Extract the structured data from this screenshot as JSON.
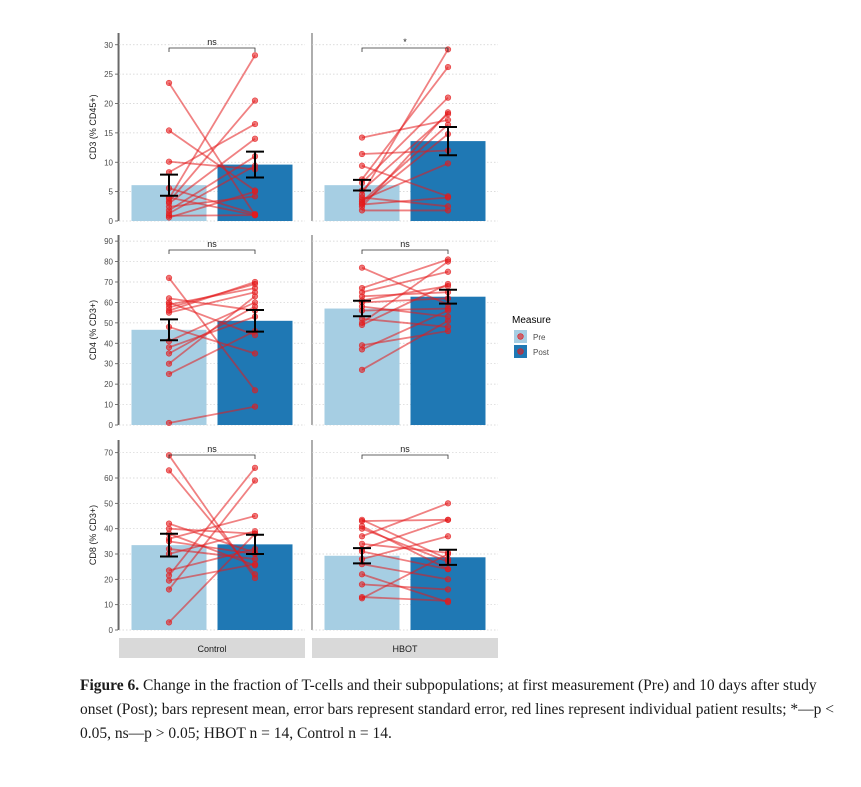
{
  "chart_data": {
    "type": "bar",
    "facet_columns": [
      "Control",
      "HBOT"
    ],
    "categories": [
      "Pre",
      "Post"
    ],
    "legend": {
      "title": "Measure",
      "entries": [
        "Pre",
        "Post"
      ],
      "position": "right"
    },
    "colors": {
      "pre": "#a6cee3",
      "post": "#1f78b4",
      "lines": "#e41a1c",
      "strip": "#d9d9d9"
    },
    "grid": true,
    "panels": [
      {
        "ylabel": "CD3 (% CD45+)",
        "ylim": [
          0,
          32
        ],
        "ticks": [
          0,
          5,
          10,
          15,
          20,
          25,
          30
        ],
        "facets": {
          "Control": {
            "mean": [
              6.1,
              9.6
            ],
            "se": [
              1.8,
              2.2
            ],
            "sig": "ns",
            "pairs": [
              [
                23.5,
                1.0
              ],
              [
                15.4,
                5.2
              ],
              [
                10.1,
                8.8
              ],
              [
                8.3,
                16.5
              ],
              [
                5.6,
                1.2
              ],
              [
                4.0,
                1.0
              ],
              [
                3.8,
                28.2
              ],
              [
                3.3,
                20.5
              ],
              [
                3.0,
                14.0
              ],
              [
                2.4,
                4.2
              ],
              [
                1.8,
                11.0
              ],
              [
                1.3,
                9.4
              ],
              [
                0.9,
                1.0
              ],
              [
                0.6,
                5.0
              ]
            ]
          },
          "HBOT": {
            "mean": [
              6.1,
              13.6
            ],
            "se": [
              0.9,
              2.4
            ],
            "sig": "*",
            "pairs": [
              [
                14.2,
                17.2
              ],
              [
                11.4,
                12.0
              ],
              [
                9.4,
                4.2
              ],
              [
                7.1,
                26.2
              ],
              [
                6.5,
                21.0
              ],
              [
                5.2,
                18.2
              ],
              [
                4.5,
                29.2
              ],
              [
                4.0,
                2.5
              ],
              [
                3.6,
                9.8
              ],
              [
                3.3,
                16.4
              ],
              [
                3.0,
                14.8
              ],
              [
                2.8,
                4.0
              ],
              [
                2.4,
                18.5
              ],
              [
                1.8,
                1.8
              ]
            ]
          }
        }
      },
      {
        "ylabel": "CD4 (% CD3+)",
        "ylim": [
          0,
          93
        ],
        "ticks": [
          0,
          10,
          20,
          30,
          40,
          50,
          60,
          70,
          80,
          90
        ],
        "facets": {
          "Control": {
            "mean": [
              46.6,
              51.0
            ],
            "se": [
              5.1,
              5.3
            ],
            "sig": "ns",
            "pairs": [
              [
                72.0,
                17.0
              ],
              [
                62.0,
                56.0
              ],
              [
                60.0,
                44.0
              ],
              [
                59.0,
                67.0
              ],
              [
                57.5,
                69.0
              ],
              [
                56.0,
                70.0
              ],
              [
                55.0,
                65.0
              ],
              [
                48.0,
                35.0
              ],
              [
                41.0,
                60.0
              ],
              [
                38.0,
                53.0
              ],
              [
                35.0,
                58.0
              ],
              [
                30.0,
                63.0
              ],
              [
                25.0,
                46.0
              ],
              [
                1.0,
                9.0
              ]
            ]
          },
          "HBOT": {
            "mean": [
              57.0,
              62.8
            ],
            "se": [
              3.8,
              3.4
            ],
            "sig": "ns",
            "pairs": [
              [
                77.0,
                59.0
              ],
              [
                67.0,
                81.0
              ],
              [
                65.0,
                75.0
              ],
              [
                63.0,
                65.0
              ],
              [
                61.0,
                68.0
              ],
              [
                60.0,
                62.0
              ],
              [
                58.0,
                53.0
              ],
              [
                56.0,
                57.0
              ],
              [
                52.0,
                48.0
              ],
              [
                50.0,
                80.0
              ],
              [
                49.0,
                69.0
              ],
              [
                39.0,
                46.0
              ],
              [
                37.0,
                56.0
              ],
              [
                27.0,
                51.0
              ]
            ]
          }
        }
      },
      {
        "ylabel": "CD8 (% CD3+)",
        "ylim": [
          0,
          75
        ],
        "ticks": [
          0,
          10,
          20,
          30,
          40,
          50,
          60,
          70
        ],
        "facets": {
          "Control": {
            "mean": [
              33.5,
              33.8
            ],
            "se": [
              4.5,
              3.8
            ],
            "sig": "ns",
            "pairs": [
              [
                69.0,
                20.5
              ],
              [
                63.0,
                22.0
              ],
              [
                42.0,
                30.5
              ],
              [
                40.0,
                38.0
              ],
              [
                38.0,
                25.5
              ],
              [
                36.0,
                45.0
              ],
              [
                35.0,
                30.0
              ],
              [
                32.0,
                28.0
              ],
              [
                30.0,
                39.0
              ],
              [
                23.5,
                32.0
              ],
              [
                21.5,
                64.0
              ],
              [
                19.5,
                26.0
              ],
              [
                16.0,
                59.0
              ],
              [
                3.0,
                38.0
              ]
            ]
          },
          "HBOT": {
            "mean": [
              29.3,
              28.7
            ],
            "se": [
              3.0,
              3.0
            ],
            "sig": "ns",
            "pairs": [
              [
                43.5,
                28.0
              ],
              [
                43.0,
                43.5
              ],
              [
                41.0,
                24.0
              ],
              [
                40.0,
                27.0
              ],
              [
                37.0,
                50.0
              ],
              [
                34.0,
                30.5
              ],
              [
                32.0,
                43.5
              ],
              [
                31.0,
                24.0
              ],
              [
                28.0,
                37.0
              ],
              [
                26.0,
                20.0
              ],
              [
                22.0,
                11.0
              ],
              [
                18.0,
                16.0
              ],
              [
                13.0,
                11.5
              ],
              [
                12.5,
                30.0
              ]
            ]
          }
        }
      }
    ]
  },
  "caption": {
    "label": "Figure 6.",
    "text": " Change in the fraction of T-cells and their subpopulations; at first measurement (Pre) and 10 days after study onset (Post); bars represent mean, error bars represent standard error, red lines represent individual patient results; *—p < 0.05, ns—p > 0.05; HBOT n = 14, Control n = 14."
  }
}
